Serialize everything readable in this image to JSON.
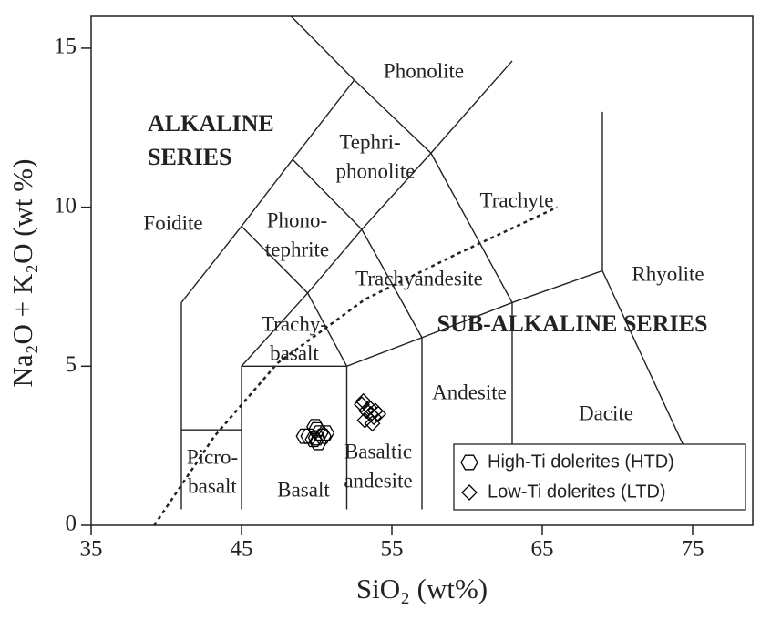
{
  "chart_data": {
    "type": "scatter",
    "x_label": "SiO₂ (wt%)",
    "y_label": "Na₂O + K₂O (wt %)",
    "xlim": [
      35,
      79
    ],
    "ylim": [
      0,
      16
    ],
    "xticks": [
      35,
      45,
      55,
      65,
      75
    ],
    "yticks": [
      0,
      5,
      10,
      15
    ],
    "legend": "lower right",
    "series": [
      {
        "name": "High-Ti dolerites (HTD)",
        "marker": "hexagon",
        "color": "#000000",
        "x": [
          49.5,
          50,
          50.2,
          49.8,
          50.4,
          49.9,
          50.1,
          49.2,
          50.6,
          50
        ],
        "y": [
          2.8,
          3.0,
          2.9,
          2.7,
          2.8,
          3.1,
          2.6,
          2.8,
          2.9,
          2.75
        ]
      },
      {
        "name": "Low-Ti dolerites (LTD)",
        "marker": "diamond",
        "color": "#000000",
        "x": [
          53,
          53.3,
          53.6,
          53.9,
          54.1,
          53.2,
          53.5,
          53.8,
          53.1,
          53.7
        ],
        "y": [
          3.8,
          3.6,
          3.5,
          3.6,
          3.5,
          3.3,
          3.7,
          3.4,
          3.9,
          3.2
        ]
      }
    ],
    "field_boundaries": [
      {
        "x": [
          41,
          41,
          45,
          48.4,
          52.5,
          48.3
        ],
        "y": [
          0.5,
          7,
          9.4,
          11.5,
          14,
          16
        ]
      },
      {
        "x": [
          41,
          45
        ],
        "y": [
          3,
          3
        ]
      },
      {
        "x": [
          45,
          45,
          49.4,
          53,
          57.6
        ],
        "y": [
          0.5,
          5,
          7.3,
          9.3,
          11.7
        ]
      },
      {
        "x": [
          45,
          49.4,
          52,
          52
        ],
        "y": [
          9.4,
          7.3,
          5,
          0.5
        ]
      },
      {
        "x": [
          45,
          52
        ],
        "y": [
          5,
          5
        ]
      },
      {
        "x": [
          48.4,
          53,
          57,
          57
        ],
        "y": [
          11.5,
          9.3,
          5.9,
          0.5
        ]
      },
      {
        "x": [
          52.5,
          57.6,
          63,
          63
        ],
        "y": [
          14,
          11.7,
          7,
          0.5
        ]
      },
      {
        "x": [
          52,
          57,
          63,
          69,
          74.4
        ],
        "y": [
          5,
          5.9,
          7,
          8,
          2.5
        ]
      },
      {
        "x": [
          69,
          69
        ],
        "y": [
          8,
          13
        ]
      },
      {
        "x": [
          57.6,
          63
        ],
        "y": [
          11.7,
          14.6
        ]
      }
    ],
    "divider": {
      "style": "dashed",
      "x": [
        39.2,
        43.2,
        47.4,
        53.2,
        59.2,
        66
      ],
      "y": [
        0,
        2.8,
        5.1,
        7.1,
        8.5,
        10
      ]
    },
    "field_labels": [
      [
        "Foidite"
      ],
      [
        "Phonolite"
      ],
      [
        "Tephri-",
        "phonolite"
      ],
      [
        "Phono-",
        "tephrite"
      ],
      [
        "Trachyte"
      ],
      [
        "Trachyandesite"
      ],
      [
        "Trachy-",
        "basalt"
      ],
      [
        "Rhyolite"
      ],
      [
        "Andesite"
      ],
      [
        "Dacite"
      ],
      [
        "Picro-",
        "basalt"
      ],
      [
        "Basalt"
      ],
      [
        "Basaltic",
        "andesite"
      ]
    ],
    "series_labels": [
      [
        "ALKALINE",
        "SERIES"
      ],
      [
        "SUB-ALKALINE SERIES"
      ]
    ]
  }
}
